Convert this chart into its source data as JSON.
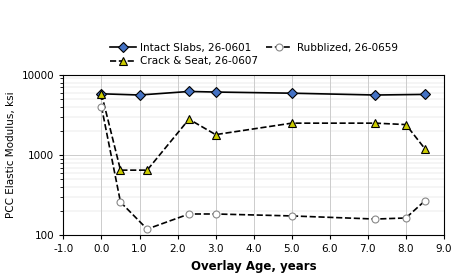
{
  "intact_x": [
    0.0,
    1.0,
    2.3,
    3.0,
    5.0,
    7.2,
    8.5
  ],
  "intact_y": [
    5800,
    5600,
    6200,
    6100,
    5900,
    5600,
    5700
  ],
  "crack_x": [
    0.0,
    0.5,
    1.2,
    2.3,
    3.0,
    5.0,
    7.2,
    8.0,
    8.5
  ],
  "crack_y": [
    5800,
    650,
    650,
    2800,
    1800,
    2500,
    2500,
    2400,
    1200
  ],
  "rubble_x": [
    0.0,
    0.5,
    1.2,
    2.3,
    3.0,
    5.0,
    7.2,
    8.0,
    8.5
  ],
  "rubble_y": [
    4000,
    260,
    120,
    185,
    185,
    175,
    160,
    165,
    270
  ],
  "intact_color": "#4472c4",
  "crack_color": "#cccc00",
  "line_color": "#000000",
  "xlabel": "Overlay Age, years",
  "ylabel": "PCC Elastic Modulus, ksi",
  "xlim": [
    -1.0,
    9.0
  ],
  "ylim": [
    100,
    10000
  ],
  "legend1": "Intact Slabs, 26-0601",
  "legend2": "Crack & Seat, 26-0607",
  "legend3": "Rubblized, 26-0659",
  "xticks": [
    -1.0,
    0.0,
    1.0,
    2.0,
    3.0,
    4.0,
    5.0,
    6.0,
    7.0,
    8.0,
    9.0
  ],
  "xtick_labels": [
    "-1.0",
    "0.0",
    "1.0",
    "2.0",
    "3.0",
    "4.0",
    "5.0",
    "6.0",
    "7.0",
    "8.0",
    "9.0"
  ],
  "background_color": "#ffffff"
}
